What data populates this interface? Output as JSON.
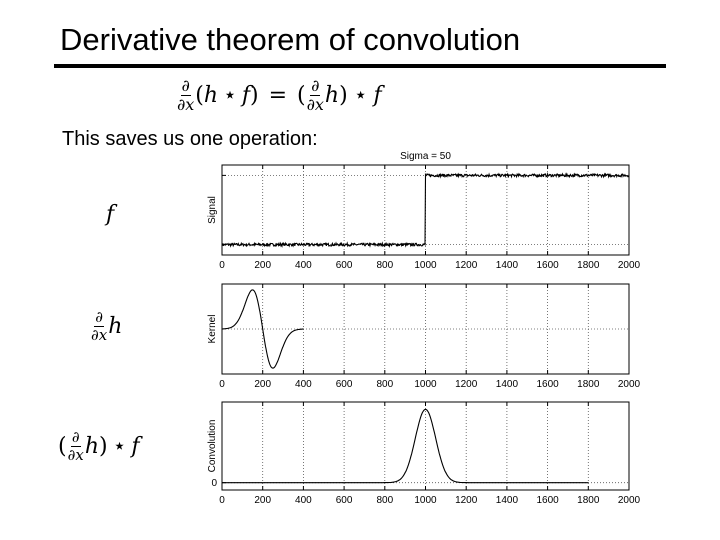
{
  "slide": {
    "title": "Derivative theorem of convolution",
    "intro": "This saves us one operation:"
  },
  "equation": {
    "partial": "∂",
    "dx": "∂x",
    "lhs_open": "(",
    "h": "h",
    "star": "⋆",
    "f": "f",
    "lhs_close": ")",
    "equals": "=",
    "rhs_open": "(",
    "rhs_close": ")"
  },
  "labels": {
    "f": "f",
    "dh_partial": "∂",
    "dh_dx": "∂x",
    "dh_h": "h",
    "conv_open": "(",
    "conv_partial": "∂",
    "conv_dx": "∂x",
    "conv_h": "h",
    "conv_close": ")",
    "conv_star": "⋆",
    "conv_f": "f"
  },
  "chart_data": [
    {
      "type": "line",
      "title": "Sigma = 50",
      "xlabel": "",
      "ylabel": "Signal",
      "xlim": [
        0,
        2000
      ],
      "ylim": [
        -0.15,
        1.15
      ],
      "xticks": [
        0,
        200,
        400,
        600,
        800,
        1000,
        1200,
        1400,
        1600,
        1800,
        2000
      ],
      "yticks": [
        0,
        1
      ],
      "ytick_labels": [],
      "grid": true,
      "series": [
        {
          "kind": "noisy_step",
          "x_range": [
            0,
            2000
          ],
          "step_at": 1000,
          "low": 0,
          "high": 1,
          "noise": 0.02
        }
      ]
    },
    {
      "type": "line",
      "title": "",
      "xlabel": "",
      "ylabel": "Kernel",
      "xlim": [
        0,
        2000
      ],
      "ylim": [
        -1.15,
        1.15
      ],
      "xticks": [
        0,
        200,
        400,
        600,
        800,
        1000,
        1200,
        1400,
        1600,
        1800,
        2000
      ],
      "yticks": [],
      "ytick_labels": [],
      "grid": true,
      "series": [
        {
          "kind": "gaussian_derivative",
          "x_range": [
            0,
            400
          ],
          "center": 200,
          "sigma": 50,
          "sign": -1
        }
      ]
    },
    {
      "type": "line",
      "title": "",
      "xlabel": "",
      "ylabel": "Convolution",
      "xlim": [
        0,
        2000
      ],
      "ylim": [
        -0.1,
        1.1
      ],
      "xticks": [
        0,
        200,
        400,
        600,
        800,
        1000,
        1200,
        1400,
        1600,
        1800,
        2000
      ],
      "yticks": [
        0
      ],
      "ytick_labels": [
        "0"
      ],
      "grid": true,
      "series": [
        {
          "kind": "gaussian",
          "x_range": [
            0,
            1800
          ],
          "center": 1000,
          "sigma": 50,
          "amplitude": 1
        }
      ]
    }
  ]
}
